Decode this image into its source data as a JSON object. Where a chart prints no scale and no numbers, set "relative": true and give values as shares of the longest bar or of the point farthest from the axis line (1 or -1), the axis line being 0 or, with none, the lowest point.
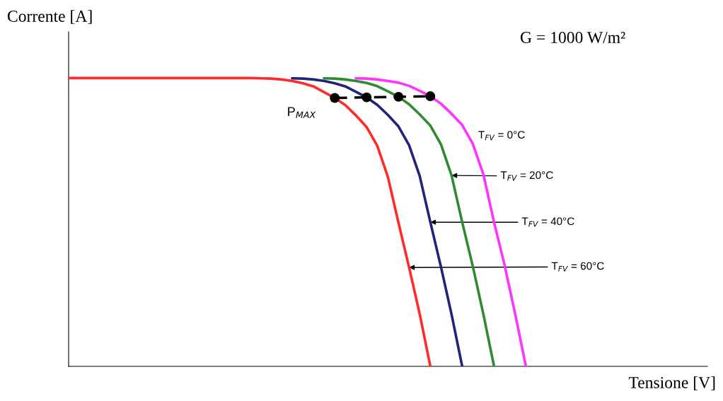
{
  "chart_data": {
    "type": "line",
    "relative": true,
    "xlabel": "Tensione [V]",
    "ylabel": "Corrente [A]",
    "legend": false,
    "marker": "none",
    "line_style": "solid",
    "categories": [
      null,
      null,
      null,
      null,
      null,
      null,
      null,
      null,
      null,
      null,
      null,
      null,
      null,
      null,
      null,
      null,
      null,
      null,
      null,
      null,
      null,
      null,
      null,
      null,
      null,
      null,
      null,
      null,
      null,
      null,
      null,
      null,
      null,
      null,
      null,
      null,
      null,
      null,
      null,
      null,
      null,
      null,
      null,
      null,
      null,
      null
    ],
    "series": [
      {
        "color": "#ff2a2a",
        "values": [
          1,
          1,
          1,
          1,
          1,
          1,
          1,
          1,
          1,
          1,
          1,
          1,
          1,
          1,
          1,
          1,
          1,
          1,
          0.999,
          0.998,
          0.995,
          0.99,
          0.982,
          0.971,
          0.951,
          0.931,
          0.906,
          0.87,
          0.83,
          0.765,
          0.657,
          0.498,
          0.343,
          0.181,
          0,
          null,
          null,
          null,
          null,
          null,
          null,
          null,
          null,
          null,
          null,
          null
        ]
      },
      {
        "color": "#22237a",
        "values": [
          null,
          null,
          null,
          null,
          null,
          null,
          null,
          null,
          null,
          null,
          null,
          null,
          null,
          null,
          null,
          null,
          null,
          null,
          null,
          null,
          null,
          0.999,
          0.998,
          0.995,
          0.99,
          0.982,
          0.971,
          0.952,
          0.933,
          0.907,
          0.872,
          0.832,
          0.767,
          0.66,
          0.5,
          0.345,
          0.18,
          0,
          null,
          null,
          null,
          null,
          null,
          null,
          null,
          null
        ]
      },
      {
        "color": "#2e8b2e",
        "values": [
          null,
          null,
          null,
          null,
          null,
          null,
          null,
          null,
          null,
          null,
          null,
          null,
          null,
          null,
          null,
          null,
          null,
          null,
          null,
          null,
          null,
          null,
          null,
          null,
          0.999,
          0.998,
          0.995,
          0.99,
          0.983,
          0.972,
          0.954,
          0.935,
          0.909,
          0.874,
          0.835,
          0.77,
          0.662,
          0.5,
          0.347,
          0.18,
          0,
          null,
          null,
          null,
          null,
          null
        ]
      },
      {
        "color": "#ff33ff",
        "values": [
          null,
          null,
          null,
          null,
          null,
          null,
          null,
          null,
          null,
          null,
          null,
          null,
          null,
          null,
          null,
          null,
          null,
          null,
          null,
          null,
          null,
          null,
          null,
          null,
          null,
          null,
          null,
          0.999,
          0.998,
          0.995,
          0.99,
          0.984,
          0.973,
          0.956,
          0.937,
          0.911,
          0.876,
          0.837,
          0.772,
          0.665,
          0.5,
          0.35,
          0.18,
          0,
          null,
          null
        ]
      },
      {
        "color": "#000000",
        "marker": "circle",
        "line_style": "dashed",
        "values": [
          null,
          null,
          null,
          null,
          null,
          null,
          null,
          null,
          null,
          null,
          null,
          null,
          null,
          null,
          null,
          null,
          null,
          null,
          null,
          null,
          null,
          null,
          null,
          null,
          null,
          0.931,
          null,
          null,
          0.933,
          null,
          null,
          0.935,
          null,
          null,
          0.937,
          null,
          null,
          null,
          null,
          null,
          null,
          null,
          null,
          null,
          null,
          null
        ]
      }
    ],
    "annotations": [
      "P$_{MAX}$",
      "T$_{FV}$ = 0°C",
      "T$_{FV}$ = 20°C",
      "T$_{FV}$ = 40°C",
      "T$_{FV}$ = 60°C",
      "G = 1000 W/m²"
    ]
  }
}
